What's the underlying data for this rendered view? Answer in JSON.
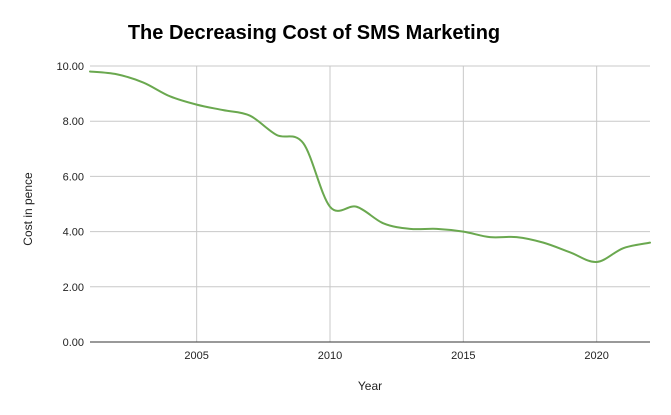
{
  "chart_data": {
    "type": "line",
    "title": "The Decreasing Cost of SMS Marketing",
    "xlabel": "Year",
    "ylabel": "Cost in pence",
    "xlim": [
      2001,
      2022
    ],
    "ylim": [
      0,
      10
    ],
    "x_ticks": [
      2005,
      2010,
      2015,
      2020
    ],
    "y_ticks": [
      "0.00",
      "2.00",
      "4.00",
      "6.00",
      "8.00",
      "10.00"
    ],
    "grid": true,
    "legend": "none",
    "line_color": "#6aa84f",
    "series": [
      {
        "x": [
          2001,
          2002,
          2003,
          2004,
          2005,
          2006,
          2007,
          2008,
          2009,
          2010,
          2011,
          2012,
          2013,
          2014,
          2015,
          2016,
          2017,
          2018,
          2019,
          2020,
          2021,
          2022
        ],
        "values": [
          9.8,
          9.7,
          9.4,
          8.9,
          8.6,
          8.4,
          8.2,
          7.5,
          7.2,
          4.9,
          4.9,
          4.3,
          4.1,
          4.1,
          4.0,
          3.8,
          3.8,
          3.6,
          3.25,
          2.9,
          3.4,
          3.6
        ]
      }
    ]
  }
}
